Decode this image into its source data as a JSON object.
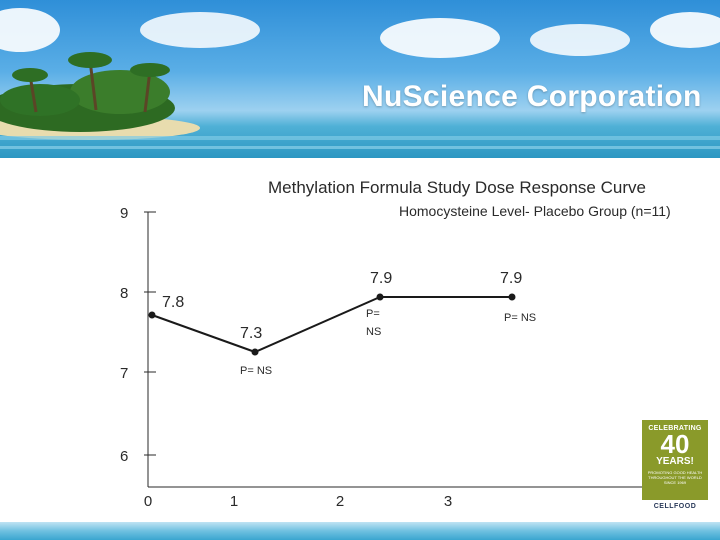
{
  "banner": {
    "company": "NuScience Corporation"
  },
  "badge": {
    "line1": "CELEBRATING",
    "number": "40",
    "line2": "YEARS!",
    "small_text": "PROMOTING GOOD HEALTH THROUGHOUT THE WORLD SINCE 1969",
    "brand": "CELLFOOD"
  },
  "chart_data": {
    "type": "line",
    "title": "Methylation Formula Study Dose Response Curve",
    "subtitle": "Homocysteine Level- Placebo Group (n=11)",
    "xlabel": "",
    "ylabel": "",
    "x_ticks": [
      "0",
      "1",
      "2",
      "3"
    ],
    "y_ticks": [
      "6",
      "7",
      "8",
      "9"
    ],
    "xlim": [
      0,
      3.5
    ],
    "ylim": [
      6,
      9
    ],
    "grid": false,
    "series": [
      {
        "points": [
          {
            "x": 0,
            "y": 7.8,
            "label": "7.8",
            "note": ""
          },
          {
            "x": 1.1,
            "y": 7.3,
            "label": "7.3",
            "note": "P= NS"
          },
          {
            "x": 2.3,
            "y": 7.9,
            "label": "7.9",
            "note": "P= NS"
          },
          {
            "x": 3.6,
            "y": 7.9,
            "label": "7.9",
            "note": "P= NS"
          }
        ]
      }
    ],
    "colors": {
      "line": "#1a1a1a",
      "axis": "#2a2a2a"
    }
  }
}
